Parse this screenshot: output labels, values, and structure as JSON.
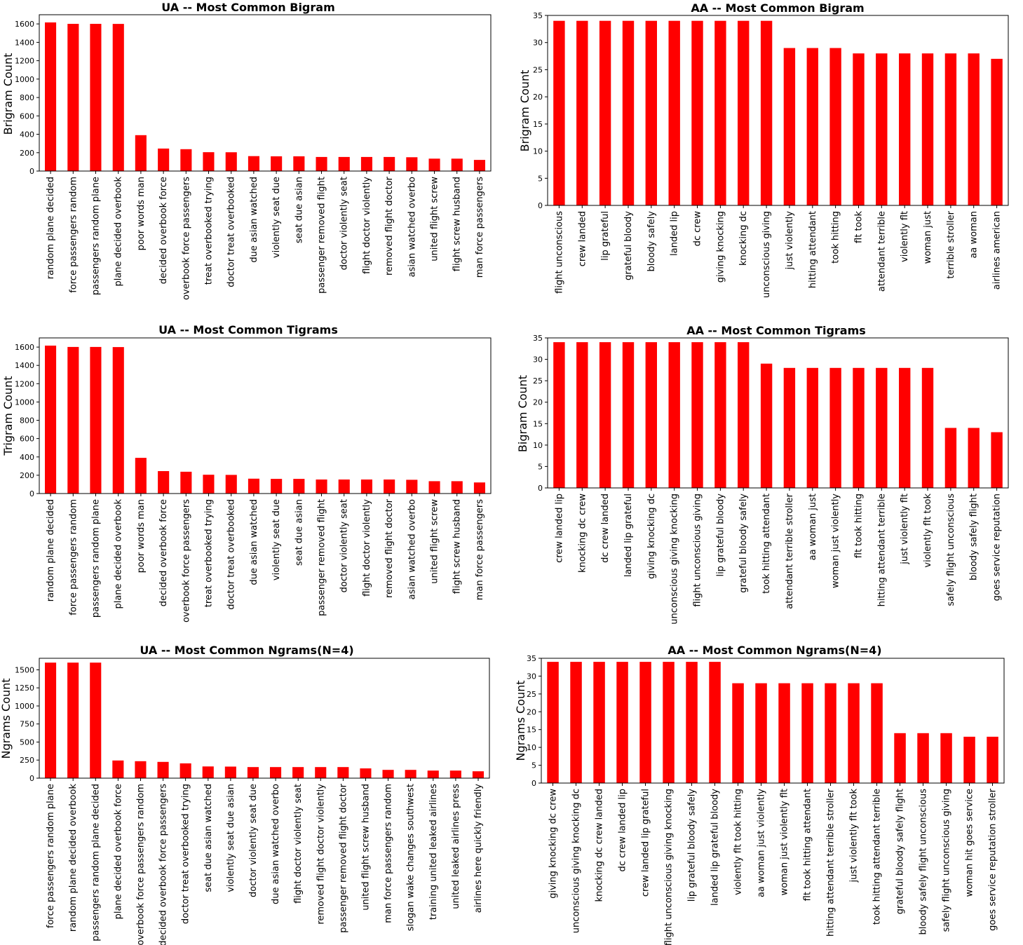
{
  "chart_data": [
    {
      "type": "bar",
      "title": "UA -- Most Common Bigram",
      "xlabel": "",
      "ylabel": "Brigram Count",
      "ylim": [
        0,
        1700
      ],
      "yticks": [
        0,
        200,
        400,
        600,
        800,
        1000,
        1200,
        1400,
        1600
      ],
      "grid": false,
      "bar_color": "#ff0000",
      "categories": [
        "random plane decided",
        "force passengers random",
        "passengers random plane",
        "plane decided overbook",
        "poor words man",
        "decided overbook force",
        "overbook force passengers",
        "treat overbooked trying",
        "doctor treat overbooked",
        "due asian watched",
        "violently seat due",
        "seat due asian",
        "passenger removed flight",
        "doctor violently seat",
        "flight doctor violently",
        "removed flight doctor",
        "asian watched overbo",
        "united flight screw",
        "flight screw husband",
        "man force passengers"
      ],
      "values": [
        1616,
        1601,
        1601,
        1600,
        390,
        245,
        238,
        205,
        204,
        162,
        160,
        160,
        153,
        153,
        153,
        153,
        150,
        135,
        135,
        121
      ]
    },
    {
      "type": "bar",
      "title": "AA -- Most Common Bigram",
      "xlabel": "",
      "ylabel": "Brigram Count",
      "ylim": [
        0,
        35
      ],
      "yticks": [
        0,
        5,
        10,
        15,
        20,
        25,
        30,
        35
      ],
      "grid": false,
      "bar_color": "#ff0000",
      "categories": [
        "flight unconscious",
        "crew landed",
        "lip grateful",
        "grateful bloody",
        "bloody safely",
        "landed lip",
        "dc crew",
        "giving knocking",
        "knocking dc",
        "unconscious giving",
        "just violently",
        "hitting attendant",
        "took hitting",
        "flt took",
        "attendant terrible",
        "violently flt",
        "woman just",
        "terrible stroller",
        "aa woman",
        "airlines american"
      ],
      "values": [
        34,
        34,
        34,
        34,
        34,
        34,
        34,
        34,
        34,
        34,
        29,
        29,
        29,
        28,
        28,
        28,
        28,
        28,
        28,
        27
      ]
    },
    {
      "type": "bar",
      "title": "UA --  Most Common Tigrams",
      "xlabel": "",
      "ylabel": "Trigram Count",
      "ylim": [
        0,
        1700
      ],
      "yticks": [
        0,
        200,
        400,
        600,
        800,
        1000,
        1200,
        1400,
        1600
      ],
      "grid": false,
      "bar_color": "#ff0000",
      "categories": [
        "random plane decided",
        "force passengers random",
        "passengers random plane",
        "plane decided overbook",
        "poor words man",
        "decided overbook force",
        "overbook force passengers",
        "treat overbooked trying",
        "doctor treat overbooked",
        "due asian watched",
        "violently seat due",
        "seat due asian",
        "passenger removed flight",
        "doctor violently seat",
        "flight doctor violently",
        "removed flight doctor",
        "asian watched overbo",
        "united flight screw",
        "flight screw husband",
        "man force passengers"
      ],
      "values": [
        1616,
        1601,
        1601,
        1600,
        390,
        245,
        238,
        205,
        204,
        162,
        160,
        160,
        153,
        153,
        153,
        153,
        150,
        135,
        135,
        121
      ]
    },
    {
      "type": "bar",
      "title": "AA -- Most Common Tigrams",
      "xlabel": "",
      "ylabel": "Bigram Count",
      "ylim": [
        0,
        35
      ],
      "yticks": [
        0,
        5,
        10,
        15,
        20,
        25,
        30,
        35
      ],
      "grid": false,
      "bar_color": "#ff0000",
      "categories": [
        "crew landed lip",
        "knocking dc crew",
        "dc crew landed",
        "landed lip grateful",
        "giving knocking dc",
        "unconscious giving knocking",
        "flight unconscious giving",
        "lip grateful bloody",
        "grateful bloody safely",
        "took hitting attendant",
        "attendant terrible stroller",
        "aa woman just",
        "woman just violently",
        "flt took hitting",
        "hitting attendant terrible",
        "just violently flt",
        "violently flt took",
        "safely flight unconscious",
        "bloody safely flight",
        "goes service reputation"
      ],
      "values": [
        34,
        34,
        34,
        34,
        34,
        34,
        34,
        34,
        34,
        29,
        28,
        28,
        28,
        28,
        28,
        28,
        28,
        14,
        14,
        13
      ]
    },
    {
      "type": "bar",
      "title": "UA -- Most Common Ngrams(N=4)",
      "xlabel": "",
      "ylabel": "Ngrams Count",
      "ylim": [
        0,
        1660
      ],
      "yticks": [
        0,
        250,
        500,
        750,
        1000,
        1250,
        1500
      ],
      "grid": false,
      "bar_color": "#ff0000",
      "categories": [
        "force passengers random plane",
        "random plane decided overbook",
        "passengers random plane decided",
        "plane decided overbook force",
        "overbook force passengers random",
        "decided overbook force passengers",
        "doctor treat overbooked trying",
        "seat due asian watched",
        "violently seat due asian",
        "doctor violently seat due",
        "due asian watched overbo",
        "flight doctor violently seat",
        "removed flight doctor violently",
        "passenger removed flight doctor",
        "united flight screw husband",
        "man force passengers random",
        "slogan wake changes southwest",
        "training united leaked airlines",
        "united leaked airlines press",
        "airlines here quickly friendly"
      ],
      "values": [
        1600,
        1600,
        1600,
        245,
        235,
        225,
        205,
        162,
        160,
        153,
        153,
        153,
        153,
        153,
        135,
        115,
        115,
        105,
        105,
        95
      ]
    },
    {
      "type": "bar",
      "title": "AA -- Most Common Ngrams(N=4)",
      "xlabel": "",
      "ylabel": "Ngrams Count",
      "ylim": [
        0,
        35
      ],
      "yticks": [
        0,
        5,
        10,
        15,
        20,
        25,
        30,
        35
      ],
      "grid": false,
      "bar_color": "#ff0000",
      "categories": [
        "giving knocking dc crew",
        "unconscious giving knocking dc",
        "knocking dc crew landed",
        "dc crew landed lip",
        "crew landed lip grateful",
        "flight unconscious giving knocking",
        "lip grateful bloody safely",
        "landed lip grateful bloody",
        "violently flt took hitting",
        "aa woman just violently",
        "woman just violently flt",
        "flt took hitting attendant",
        "hitting attendant terrible stroller",
        "just violently flt took",
        "took hitting attendant terrible",
        "grateful bloody safely flight",
        "bloody safely flight unconscious",
        "safely flight unconscious giving",
        "woman hit goes service",
        "goes service reputation stroller"
      ],
      "values": [
        34,
        34,
        34,
        34,
        34,
        34,
        34,
        34,
        28,
        28,
        28,
        28,
        28,
        28,
        28,
        14,
        14,
        14,
        13,
        13
      ]
    }
  ]
}
